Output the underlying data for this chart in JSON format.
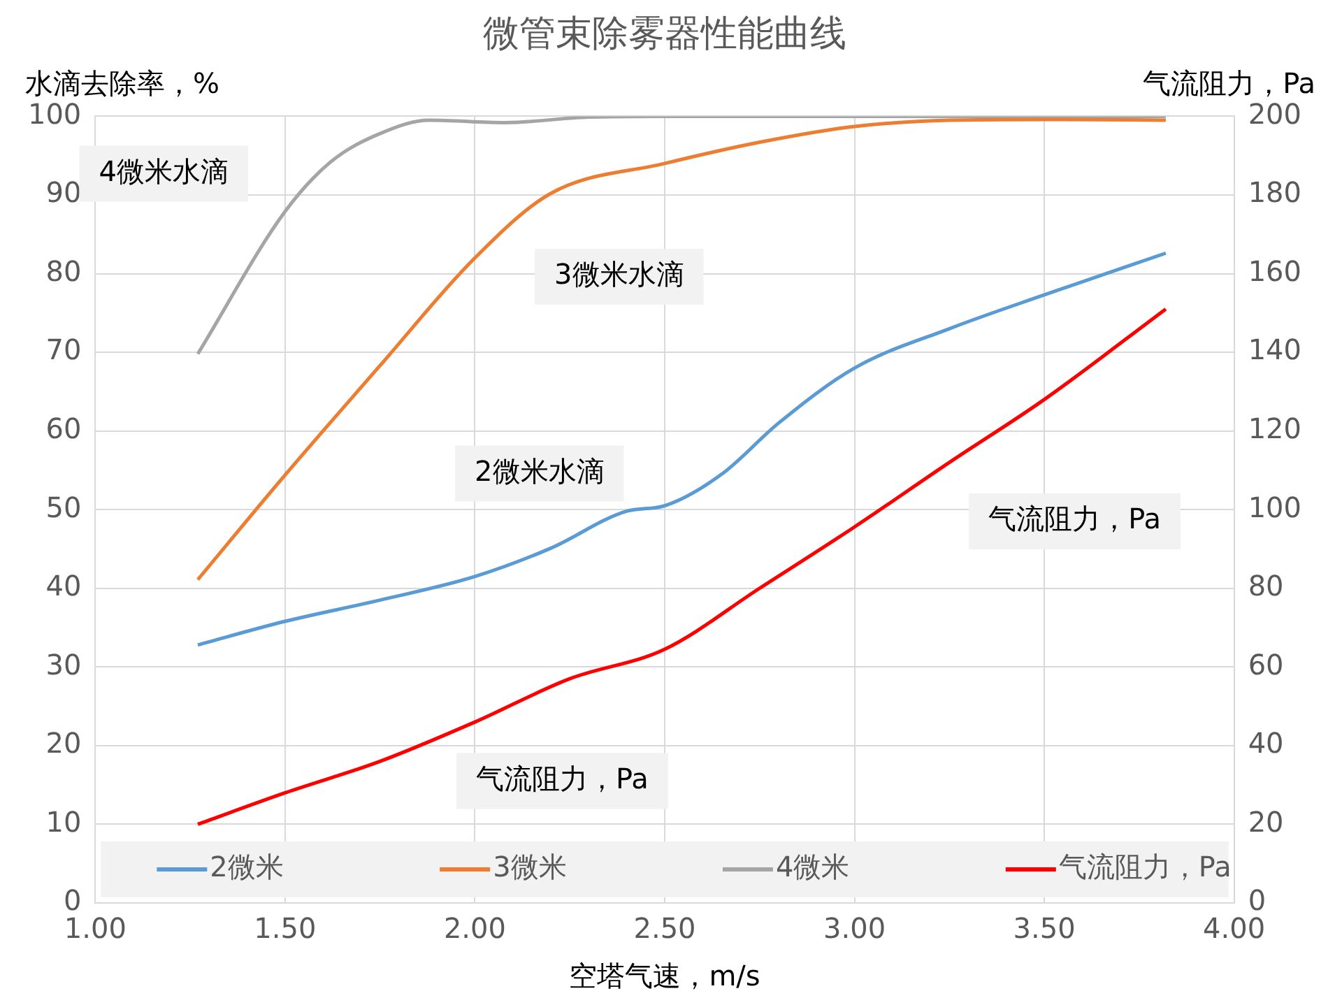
{
  "chart_data": {
    "type": "line",
    "title": "微管束除雾器性能曲线",
    "xlabel": "空塔气速，m/s",
    "ylabel": "水滴去除率，%",
    "y2label": "气流阻力，Pa",
    "xlim": [
      1,
      4
    ],
    "xticks": [
      {
        "value": 1,
        "label": "1.00"
      },
      {
        "value": 1.5,
        "label": "1.50"
      },
      {
        "value": 2,
        "label": "2.00"
      },
      {
        "value": 2.5,
        "label": "2.50"
      },
      {
        "value": 3,
        "label": "3.00"
      },
      {
        "value": 3.5,
        "label": "3.50"
      },
      {
        "value": 4,
        "label": "4.00"
      }
    ],
    "ylim": [
      0,
      100
    ],
    "yticks": [
      0,
      10,
      20,
      30,
      40,
      50,
      60,
      70,
      80,
      90,
      100
    ],
    "y2lim": [
      0,
      200
    ],
    "y2ticks": [
      0,
      20,
      40,
      60,
      80,
      100,
      120,
      140,
      160,
      180,
      200
    ],
    "grid": true,
    "legend": "bottom",
    "marker": "none",
    "line_style": "solid",
    "series": [
      {
        "name": "2微米",
        "color": "#5b9bd5",
        "x": [
          1.27,
          1.5,
          1.75,
          2.0,
          2.2,
          2.4,
          2.5,
          2.65,
          2.8,
          3.0,
          3.25,
          3.5,
          3.82
        ],
        "values": [
          32.8,
          35.8,
          38.5,
          41.5,
          45.1,
          49.8,
          50.5,
          54.5,
          61,
          68,
          73,
          77.3,
          82.6
        ]
      },
      {
        "name": "3微米",
        "color": "#ed7d31",
        "x": [
          1.27,
          1.5,
          1.75,
          2.0,
          2.2,
          2.5,
          2.75,
          3.0,
          3.25,
          3.5,
          3.82
        ],
        "values": [
          41.1,
          54.4,
          68.3,
          82,
          90.2,
          94,
          96.7,
          98.7,
          99.5,
          99.6,
          99.5
        ]
      },
      {
        "name": "4微米",
        "color": "#a5a5a5",
        "x": [
          1.27,
          1.5,
          1.62,
          1.75,
          1.88,
          2.08,
          2.3,
          2.5,
          3.0,
          3.5,
          3.82
        ],
        "values": [
          69.8,
          87.9,
          94.2,
          97.8,
          99.5,
          99.2,
          99.9,
          100,
          100,
          100,
          100
        ]
      },
      {
        "name": "气流阻力，Pa",
        "color": "#ff0000",
        "axis": "y2",
        "x": [
          1.27,
          1.5,
          1.75,
          2.0,
          2.25,
          2.5,
          2.75,
          3.0,
          3.25,
          3.5,
          3.82
        ],
        "values": [
          20,
          28,
          36,
          46,
          57,
          64.5,
          80,
          95.6,
          112,
          128,
          151
        ]
      }
    ],
    "annotations": [
      "4微米水滴",
      "3微米水滴",
      "2微米水滴",
      "气流阻力，Pa",
      "气流阻力，Pa"
    ]
  }
}
